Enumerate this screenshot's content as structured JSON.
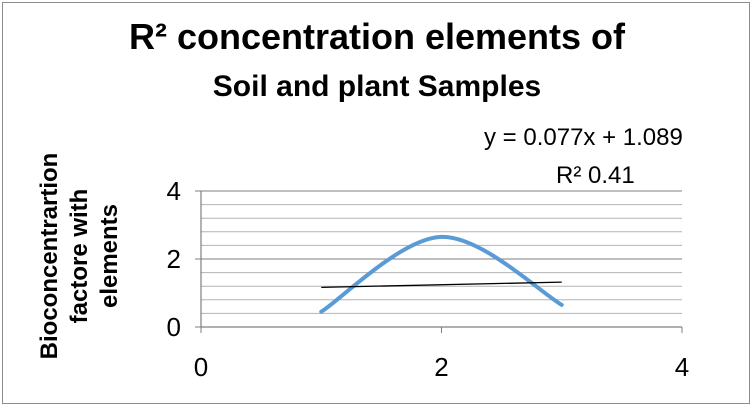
{
  "chart_data": {
    "type": "line",
    "title_line1": "R² concentration elements of",
    "title_line2": "Soil and plant Samples",
    "ylabel_lines": [
      "Bioconcentrartion",
      "factore with",
      "elements"
    ],
    "xlabel": "",
    "xlim": [
      0,
      4
    ],
    "ylim": [
      0,
      4
    ],
    "x_ticks": [
      "0",
      "2",
      "4"
    ],
    "y_ticks": [
      "0",
      "2",
      "4"
    ],
    "grid": true,
    "series": [
      {
        "x": [
          1,
          2,
          3
        ],
        "y": [
          0.45,
          2.65,
          0.65
        ],
        "smooth": true,
        "color": "#5b9bd5"
      }
    ],
    "trendline": {
      "slope": 0.077,
      "intercept": 1.089,
      "x_range": [
        1,
        3
      ],
      "color": "#000000",
      "equation": "y = 0.077x + 1.089",
      "r_squared_label": "R²  0.41"
    }
  }
}
